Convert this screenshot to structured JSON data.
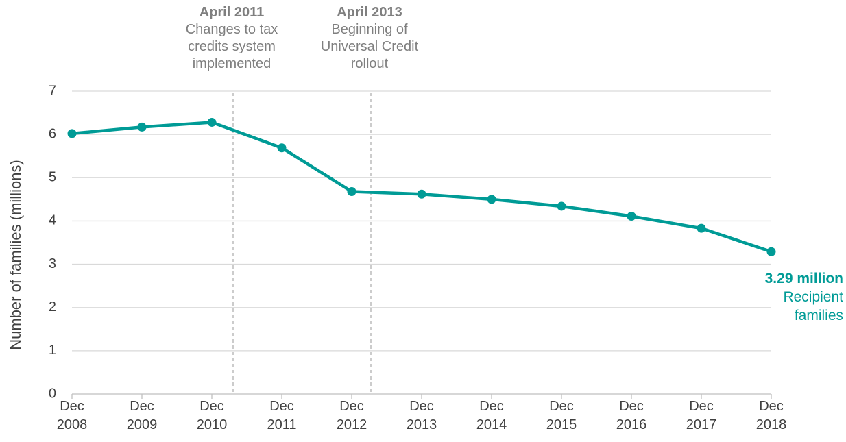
{
  "chart_data": {
    "type": "line",
    "y_label": "Number of families (millions)",
    "categories": [
      "Dec 2008",
      "Dec 2009",
      "Dec 2010",
      "Dec 2011",
      "Dec 2012",
      "Dec 2013",
      "Dec 2014",
      "Dec 2015",
      "Dec 2016",
      "Dec 2017",
      "Dec 2018"
    ],
    "series": [
      {
        "name": "Recipient families",
        "color": "#009b96",
        "values": [
          6.02,
          6.17,
          6.28,
          5.69,
          4.68,
          4.62,
          4.5,
          4.34,
          4.11,
          3.83,
          3.29
        ],
        "value_labels": [
          null,
          null,
          null,
          null,
          null,
          null,
          null,
          null,
          null,
          null,
          "3.29 million"
        ]
      }
    ],
    "ylim": [
      0,
      7
    ],
    "yticks": [
      0,
      1,
      2,
      3,
      4,
      5,
      6,
      7
    ],
    "grid": true,
    "annotations": [
      {
        "title": "April 2011",
        "text": "Changes to tax credits system implemented"
      },
      {
        "title": "April 2013",
        "text": "Beginning of Universal Credit rollout"
      }
    ]
  }
}
